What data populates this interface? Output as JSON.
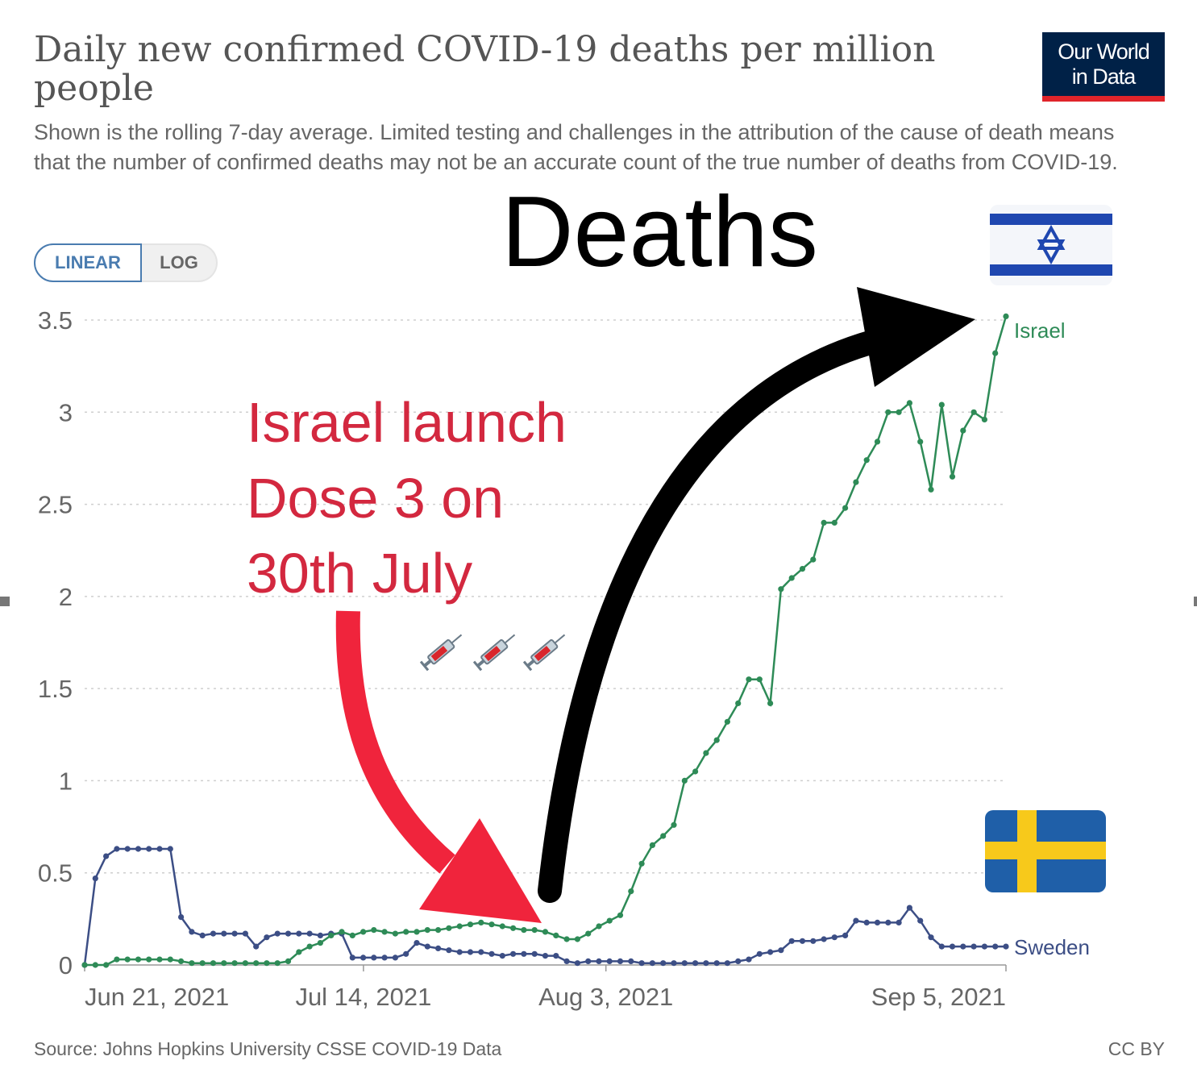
{
  "header": {
    "title": "Daily new confirmed COVID-19 deaths per million people",
    "subtitle": "Shown is the rolling 7-day average. Limited testing and challenges in the attribution of the cause of death means that the number of confirmed deaths may not be an accurate count of the true number of deaths from COVID-19.",
    "logo_line1": "Our World",
    "logo_line2": "in Data"
  },
  "scale_toggle": {
    "linear_label": "LINEAR",
    "log_label": "LOG",
    "selected": "LINEAR"
  },
  "annotations": {
    "deaths_text": "Deaths",
    "dose_line1": "Israel launch",
    "dose_line2": "Dose 3 on",
    "dose_line3": "30th July",
    "israel_flag_icon": "israel-flag-icon",
    "sweden_flag_icon": "sweden-flag-icon",
    "syringe_icons": [
      "syringe-icon",
      "syringe-icon",
      "syringe-icon"
    ],
    "red_arrow_color": "#f0243c",
    "black_arrow_color": "#000000"
  },
  "footer": {
    "source": "Source: Johns Hopkins University CSSE COVID-19 Data",
    "license": "CC BY"
  },
  "chart_data": {
    "type": "line",
    "title": "Daily new confirmed COVID-19 deaths per million people",
    "xlabel": "",
    "ylabel": "",
    "x_start": "2021-06-21",
    "x_end": "2021-09-05",
    "x_ticks": [
      "Jun 21, 2021",
      "Jul 14, 2021",
      "Aug 3, 2021",
      "Sep 5, 2021"
    ],
    "y_ticks": [
      "0",
      "0.5",
      "1",
      "1.5",
      "2",
      "2.5",
      "3",
      "3.5"
    ],
    "ylim": [
      0,
      3.5
    ],
    "grid": "horizontal dotted",
    "legend": "labels at line ends",
    "series": [
      {
        "name": "Israel",
        "color": "#2e8b57",
        "values": [
          0,
          0,
          0,
          0.03,
          0.03,
          0.03,
          0.03,
          0.03,
          0.03,
          0.02,
          0.01,
          0.01,
          0.01,
          0.01,
          0.01,
          0.01,
          0.01,
          0.01,
          0.01,
          0.02,
          0.07,
          0.1,
          0.12,
          0.16,
          0.18,
          0.16,
          0.18,
          0.19,
          0.18,
          0.17,
          0.18,
          0.18,
          0.19,
          0.19,
          0.2,
          0.21,
          0.22,
          0.23,
          0.22,
          0.21,
          0.2,
          0.19,
          0.19,
          0.18,
          0.16,
          0.14,
          0.14,
          0.17,
          0.21,
          0.24,
          0.27,
          0.4,
          0.55,
          0.65,
          0.7,
          0.76,
          1.0,
          1.05,
          1.15,
          1.22,
          1.32,
          1.42,
          1.55,
          1.55,
          1.42,
          2.04,
          2.1,
          2.15,
          2.2,
          2.4,
          2.4,
          2.48,
          2.62,
          2.74,
          2.84,
          3.0,
          3.0,
          3.05,
          2.84,
          2.58,
          3.04,
          2.65,
          2.9,
          3.0,
          2.96,
          3.32,
          3.52
        ]
      },
      {
        "name": "Sweden",
        "color": "#3c4e85",
        "values": [
          0,
          0.47,
          0.59,
          0.63,
          0.63,
          0.63,
          0.63,
          0.63,
          0.63,
          0.26,
          0.18,
          0.16,
          0.17,
          0.17,
          0.17,
          0.17,
          0.1,
          0.15,
          0.17,
          0.17,
          0.17,
          0.17,
          0.16,
          0.17,
          0.17,
          0.04,
          0.04,
          0.04,
          0.04,
          0.04,
          0.06,
          0.12,
          0.1,
          0.09,
          0.08,
          0.07,
          0.07,
          0.07,
          0.06,
          0.05,
          0.06,
          0.06,
          0.06,
          0.05,
          0.05,
          0.02,
          0.01,
          0.02,
          0.02,
          0.02,
          0.02,
          0.02,
          0.01,
          0.01,
          0.01,
          0.01,
          0.01,
          0.01,
          0.01,
          0.01,
          0.01,
          0.02,
          0.03,
          0.06,
          0.07,
          0.08,
          0.13,
          0.13,
          0.13,
          0.14,
          0.15,
          0.16,
          0.24,
          0.23,
          0.23,
          0.23,
          0.23,
          0.31,
          0.24,
          0.15,
          0.1,
          0.1,
          0.1,
          0.1,
          0.1,
          0.1,
          0.1
        ]
      }
    ]
  }
}
